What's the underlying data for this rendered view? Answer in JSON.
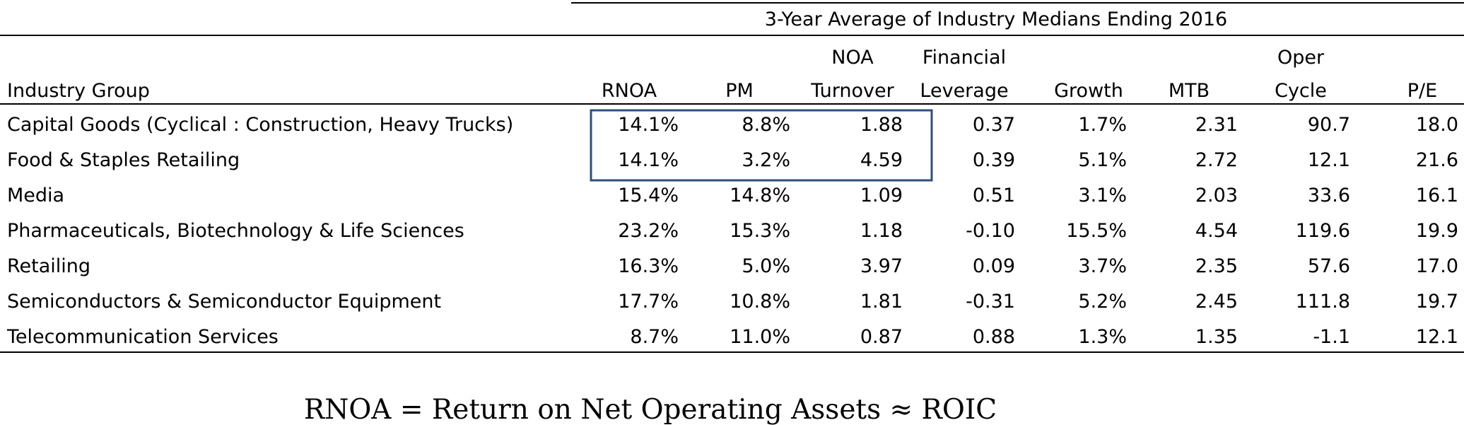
{
  "chart_data": {
    "type": "table",
    "title": "3-Year Average of Industry Medians Ending 2016",
    "columns": [
      {
        "key": "industry",
        "label_lines": [
          "",
          "Industry Group"
        ]
      },
      {
        "key": "rnoa",
        "label_lines": [
          "",
          "RNOA"
        ]
      },
      {
        "key": "pm",
        "label_lines": [
          "",
          "PM"
        ]
      },
      {
        "key": "noa_turnover",
        "label_lines": [
          "NOA",
          "Turnover"
        ]
      },
      {
        "key": "financial_leverage",
        "label_lines": [
          "Financial",
          "Leverage"
        ]
      },
      {
        "key": "growth",
        "label_lines": [
          "",
          "Growth"
        ]
      },
      {
        "key": "mtb",
        "label_lines": [
          "",
          "MTB"
        ]
      },
      {
        "key": "oper_cycle",
        "label_lines": [
          "Oper",
          "Cycle"
        ]
      },
      {
        "key": "pe",
        "label_lines": [
          "",
          "P/E"
        ]
      }
    ],
    "rows": [
      [
        "Capital Goods  (Cyclical : Construction, Heavy Trucks)",
        "14.1%",
        "8.8%",
        "1.88",
        "0.37",
        "1.7%",
        "2.31",
        "90.7",
        "18.0"
      ],
      [
        "Food & Staples Retailing",
        "14.1%",
        "3.2%",
        "4.59",
        "0.39",
        "5.1%",
        "2.72",
        "12.1",
        "21.6"
      ],
      [
        "Media",
        "15.4%",
        "14.8%",
        "1.09",
        "0.51",
        "3.1%",
        "2.03",
        "33.6",
        "16.1"
      ],
      [
        "Pharmaceuticals, Biotechnology & Life Sciences",
        "23.2%",
        "15.3%",
        "1.18",
        "-0.10",
        "15.5%",
        "4.54",
        "119.6",
        "19.9"
      ],
      [
        "Retailing",
        "16.3%",
        "5.0%",
        "3.97",
        "0.09",
        "3.7%",
        "2.35",
        "57.6",
        "17.0"
      ],
      [
        "Semiconductors & Semiconductor Equipment",
        "17.7%",
        "10.8%",
        "1.81",
        "-0.31",
        "5.2%",
        "2.45",
        "111.8",
        "19.7"
      ],
      [
        "Telecommunication Services",
        "8.7%",
        "11.0%",
        "0.87",
        "0.88",
        "1.3%",
        "1.35",
        "-1.1",
        "12.1"
      ]
    ],
    "highlight": {
      "rows": [
        0,
        1
      ],
      "columns": [
        "rnoa",
        "pm",
        "noa_turnover"
      ],
      "color": "#2f4f7a"
    },
    "footnote": "RNOA = Return on Net Operating Assets ≈ ROIC"
  }
}
